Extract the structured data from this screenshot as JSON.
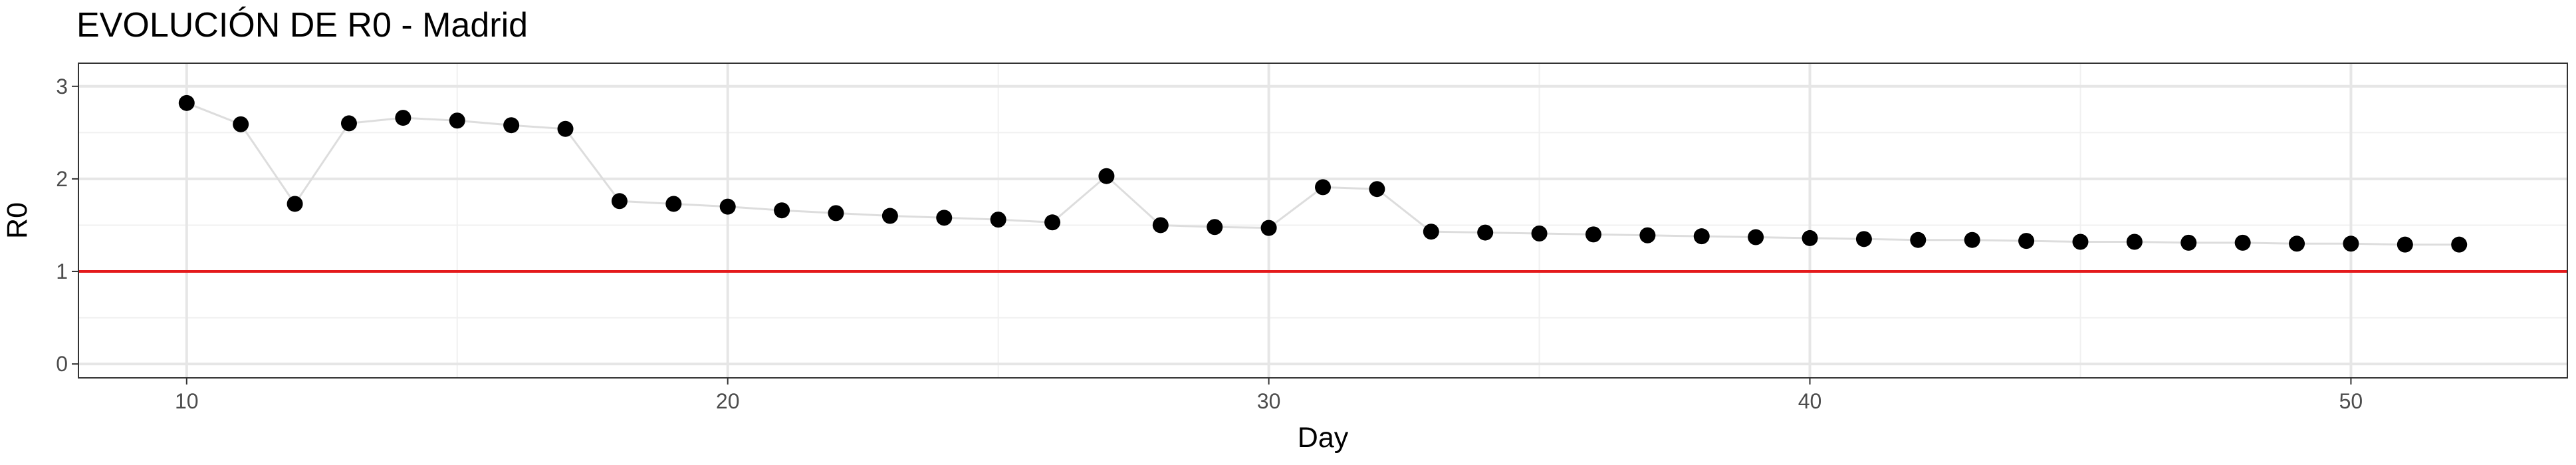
{
  "chart_data": {
    "type": "scatter",
    "title": "EVOLUCIÓN DE R0 - Madrid",
    "xlabel": "Day",
    "ylabel": "R0",
    "xlim": [
      8,
      54
    ],
    "ylim": [
      -0.15,
      3.25
    ],
    "x_ticks": [
      10,
      20,
      30,
      40,
      50
    ],
    "y_ticks": [
      0,
      1,
      2,
      3
    ],
    "grid": true,
    "connected_line": true,
    "reference_line": {
      "y": 1,
      "color": "#e41a1c"
    },
    "point_color": "#000000",
    "line_color": "#dddddd",
    "series": [
      {
        "x": [
          10,
          11,
          12,
          13,
          14,
          15,
          16,
          17,
          18,
          19,
          20,
          21,
          22,
          23,
          24,
          25,
          26,
          27,
          28,
          29,
          30,
          31,
          32,
          33,
          34,
          35,
          36,
          37,
          38,
          39,
          40,
          41,
          42,
          43,
          44,
          45,
          46,
          47,
          48,
          49,
          50,
          51,
          52
        ],
        "y": [
          2.82,
          2.59,
          1.73,
          2.6,
          2.66,
          2.63,
          2.58,
          2.54,
          1.76,
          1.73,
          1.7,
          1.66,
          1.63,
          1.6,
          1.58,
          1.56,
          1.53,
          2.03,
          1.5,
          1.48,
          1.47,
          1.91,
          1.89,
          1.43,
          1.42,
          1.41,
          1.4,
          1.39,
          1.38,
          1.37,
          1.36,
          1.35,
          1.34,
          1.34,
          1.33,
          1.32,
          1.32,
          1.31,
          1.31,
          1.3,
          1.3,
          1.29,
          1.29
        ]
      }
    ]
  }
}
